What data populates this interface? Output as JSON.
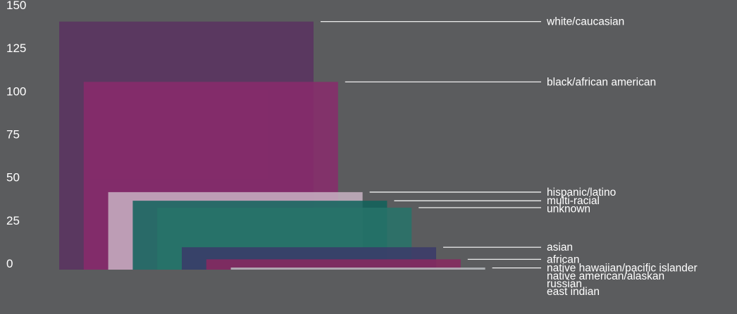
{
  "chart_data": {
    "type": "bar",
    "layout": "overlapping",
    "yticks": [
      0,
      25,
      50,
      75,
      100,
      125,
      150
    ],
    "ylim": [
      0,
      150
    ],
    "grid": false,
    "legend": "right",
    "series": [
      {
        "name": "white/caucasian",
        "value": 144,
        "color": "#5a3160"
      },
      {
        "name": "black/african american",
        "value": 109,
        "color": "#8a2a6c"
      },
      {
        "name": "hispanic/latino",
        "value": 45,
        "color": "#c8b2c2"
      },
      {
        "name": "multi-racial",
        "value": 40,
        "color": "#0f615a"
      },
      {
        "name": "unknown",
        "value": 36,
        "color": "#27736a"
      },
      {
        "name": "asian",
        "value": 13,
        "color": "#3b3a6a"
      },
      {
        "name": "african",
        "value": 6,
        "color": "#8a2860"
      },
      {
        "name": "native hawaiian/pacific islander",
        "value": 1,
        "color": "#b8bcc0"
      },
      {
        "name": "native american/alaskan",
        "value": 0,
        "color": "#b8bcc0"
      },
      {
        "name": "russian",
        "value": 0,
        "color": "#b8bcc0"
      },
      {
        "name": "east indian",
        "value": 0,
        "color": "#b8bcc0"
      }
    ]
  }
}
